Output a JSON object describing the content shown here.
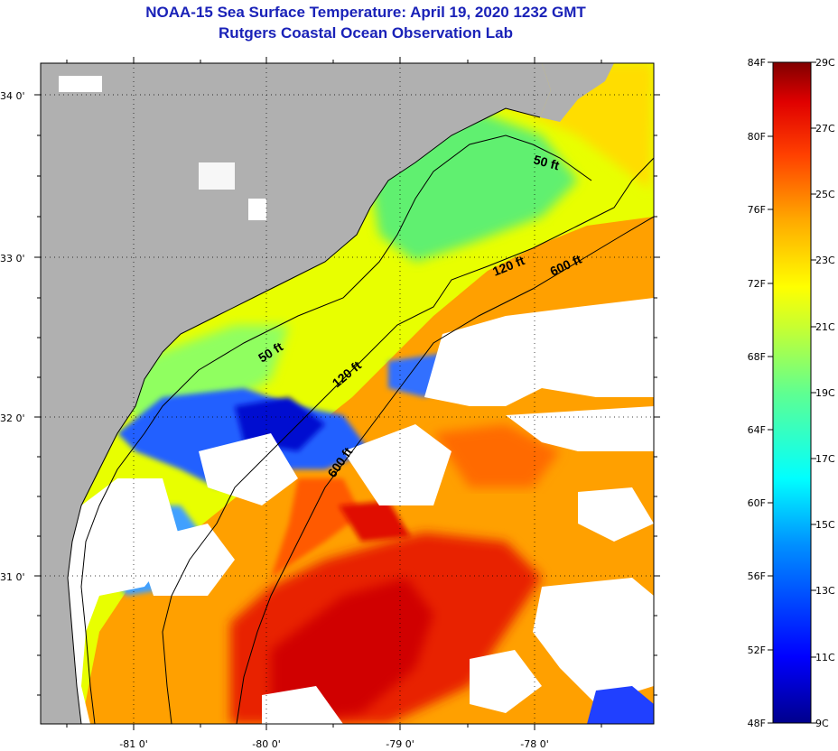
{
  "title": "NOAA-15 Sea Surface Temperature:  April 19, 2020 1232 GMT",
  "subtitle": "Rutgers Coastal Ocean Observation Lab",
  "map": {
    "lat_labels": [
      "34 0'",
      "33 0'",
      "32 0'",
      "31 0'"
    ],
    "lon_labels": [
      "-81 0'",
      "-80 0'",
      "-79 0'",
      "-78 0'"
    ],
    "depth_contours": [
      "50 ft",
      "50 ft",
      "120 ft",
      "120 ft",
      "600 ft",
      "600 ft"
    ]
  },
  "colorbar": {
    "f_labels": [
      "84F",
      "80F",
      "76F",
      "72F",
      "68F",
      "64F",
      "60F",
      "56F",
      "52F",
      "48F"
    ],
    "c_labels": [
      "29C",
      "27C",
      "25C",
      "23C",
      "21C",
      "19C",
      "17C",
      "15C",
      "13C",
      "11C",
      "9C"
    ]
  },
  "colors": {
    "land": "#b0b0b0",
    "cloud": "#ffffff",
    "title": "#1a22b8"
  }
}
